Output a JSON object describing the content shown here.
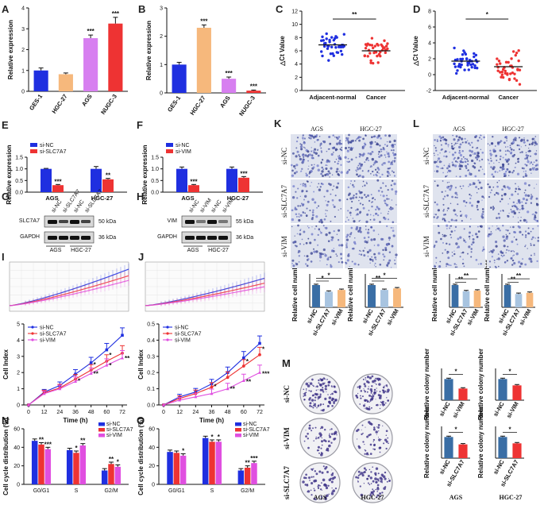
{
  "panels": {
    "A": {
      "label": "A"
    },
    "B": {
      "label": "B"
    },
    "C": {
      "label": "C"
    },
    "D": {
      "label": "D"
    },
    "E": {
      "label": "E"
    },
    "F": {
      "label": "F"
    },
    "G": {
      "label": "G"
    },
    "H": {
      "label": "H"
    },
    "I": {
      "label": "I"
    },
    "J": {
      "label": "J"
    },
    "K": {
      "label": "K"
    },
    "L": {
      "label": "L"
    },
    "M": {
      "label": "M"
    },
    "N": {
      "label": "N"
    },
    "O": {
      "label": "O"
    }
  },
  "colors": {
    "blue": "#1f2fe0",
    "peach": "#f6b87c",
    "lavender": "#d77ff0",
    "red": "#ee3333",
    "steel": "#3a6ea5",
    "pale": "#a8c4e0",
    "magenta": "#e04fe0",
    "navy": "#2a4a80"
  },
  "chart_data": [
    {
      "id": "A",
      "type": "bar",
      "ylabel": "Relative expression",
      "categories": [
        "GES-1",
        "HGC-27",
        "AGS",
        "NUGC-3"
      ],
      "values": [
        1.0,
        0.82,
        2.55,
        3.25
      ],
      "errors": [
        0.12,
        0.06,
        0.15,
        0.3
      ],
      "ylim": [
        0,
        4
      ],
      "yticks": [
        "0",
        "1",
        "2",
        "3",
        "4"
      ],
      "sig": [
        "",
        "",
        "***",
        "***"
      ]
    },
    {
      "id": "B",
      "type": "bar",
      "ylabel": "Relative expression",
      "categories": [
        "GES-1",
        "HGC-27",
        "AGS",
        "NUGC-3"
      ],
      "values": [
        1.0,
        2.3,
        0.5,
        0.08
      ],
      "errors": [
        0.08,
        0.1,
        0.06,
        0.02
      ],
      "ylim": [
        0,
        3
      ],
      "yticks": [
        "0",
        "1",
        "2",
        "3"
      ],
      "sig": [
        "",
        "***",
        "***",
        "***"
      ]
    },
    {
      "id": "C",
      "type": "scatter",
      "ylabel": "△Ct Value",
      "categories": [
        "Adjacent-normal",
        "Cancer"
      ],
      "ylim": [
        0,
        12
      ],
      "yticks": [
        "0",
        "2",
        "4",
        "6",
        "8",
        "10",
        "12"
      ],
      "means": [
        6.9,
        6.0
      ],
      "sig": "**"
    },
    {
      "id": "D",
      "type": "scatter",
      "ylabel": "△Ct Value",
      "categories": [
        "Adjacent-normal",
        "Cancer"
      ],
      "ylim": [
        -2,
        8
      ],
      "yticks": [
        "-2",
        "0",
        "2",
        "4",
        "6",
        "8"
      ],
      "means": [
        1.7,
        1.0
      ],
      "sig": "*"
    },
    {
      "id": "E",
      "type": "bar",
      "ylabel": "Relative expression",
      "legend": [
        "si-NC",
        "si-SLC7A7"
      ],
      "categories": [
        "AGS",
        "HGC-27"
      ],
      "series": [
        {
          "name": "si-NC",
          "values": [
            1.0,
            1.0
          ],
          "errors": [
            0.02,
            0.1
          ]
        },
        {
          "name": "si-SLC7A7",
          "values": [
            0.3,
            0.55
          ],
          "errors": [
            0.03,
            0.04
          ]
        }
      ],
      "ylim": [
        0,
        1.5
      ],
      "yticks": [
        "0.0",
        "0.5",
        "1.0",
        "1.5"
      ],
      "sig": [
        "***",
        "**"
      ]
    },
    {
      "id": "F",
      "type": "bar",
      "ylabel": "Relative expression",
      "legend": [
        "si-NC",
        "si-VIM"
      ],
      "categories": [
        "AGS",
        "HGC-27"
      ],
      "series": [
        {
          "name": "si-NC",
          "values": [
            1.0,
            1.0
          ],
          "errors": [
            0.08,
            0.08
          ]
        },
        {
          "name": "si-VIM",
          "values": [
            0.3,
            0.62
          ],
          "errors": [
            0.03,
            0.05
          ]
        }
      ],
      "ylim": [
        0,
        1.5
      ],
      "yticks": [
        "0.0",
        "0.5",
        "1.0",
        "1.5"
      ],
      "sig": [
        "***",
        "***"
      ]
    },
    {
      "id": "I",
      "type": "line",
      "ylabel": "Cell Index",
      "xlabel": "Time (h)",
      "x": [
        0,
        12,
        24,
        36,
        48,
        60,
        72
      ],
      "series": [
        {
          "name": "si-NC",
          "values": [
            0,
            0.8,
            1.2,
            1.9,
            2.6,
            3.4,
            4.3
          ]
        },
        {
          "name": "si-SLC7A7",
          "values": [
            0,
            0.75,
            1.05,
            1.6,
            2.15,
            2.7,
            3.2
          ]
        },
        {
          "name": "si-VIM",
          "values": [
            0,
            0.7,
            1.0,
            1.45,
            1.95,
            2.45,
            2.9
          ]
        }
      ],
      "ylim": [
        0,
        5
      ],
      "yticks": [
        "0",
        "1",
        "2",
        "3",
        "4",
        "5"
      ]
    },
    {
      "id": "J",
      "type": "line",
      "ylabel": "Cell Index",
      "xlabel": "Time (h)",
      "x": [
        0,
        12,
        24,
        36,
        48,
        60,
        72
      ],
      "series": [
        {
          "name": "si-NC",
          "values": [
            0,
            0.05,
            0.08,
            0.13,
            0.2,
            0.29,
            0.38
          ]
        },
        {
          "name": "si-SLC7A7",
          "values": [
            0,
            0.04,
            0.07,
            0.11,
            0.17,
            0.24,
            0.31
          ]
        },
        {
          "name": "si-VIM",
          "values": [
            0,
            0.03,
            0.05,
            0.07,
            0.1,
            0.15,
            0.2
          ]
        }
      ],
      "ylim": [
        0,
        0.5
      ],
      "yticks": [
        "0.0",
        "0.1",
        "0.2",
        "0.3",
        "0.4",
        "0.5"
      ]
    },
    {
      "id": "N",
      "type": "bar",
      "ylabel": "Cell cycle distribution (%)",
      "categories": [
        "G0/G1",
        "S",
        "G2/M"
      ],
      "legend": [
        "si-NC",
        "si-SLC7A7",
        "si-VIM"
      ],
      "series": [
        {
          "name": "si-NC",
          "values": [
            47,
            37,
            15
          ]
        },
        {
          "name": "si-SLC7A7",
          "values": [
            43,
            34,
            22
          ]
        },
        {
          "name": "si-VIM",
          "values": [
            38,
            42,
            19
          ]
        }
      ],
      "ylim": [
        0,
        60
      ],
      "yticks": [
        "0",
        "20",
        "40",
        "60"
      ]
    },
    {
      "id": "O",
      "type": "bar",
      "ylabel": "Cell cycle distribution (%)",
      "categories": [
        "G0/G1",
        "S",
        "G2/M"
      ],
      "legend": [
        "si-NC",
        "si-SLC7A7",
        "si-VIM"
      ],
      "series": [
        {
          "name": "si-NC",
          "values": [
            35,
            50,
            15
          ]
        },
        {
          "name": "si-SLC7A7",
          "values": [
            34,
            46,
            18
          ]
        },
        {
          "name": "si-VIM",
          "values": [
            31,
            46,
            23
          ]
        }
      ],
      "ylim": [
        0,
        60
      ],
      "yticks": [
        "0",
        "20",
        "40",
        "60"
      ]
    },
    {
      "id": "K_AGS",
      "type": "bar",
      "ylabel": "Relative cell number",
      "categories": [
        "si-NC",
        "si-SLC7A7",
        "si-VIM"
      ],
      "values": [
        1.0,
        0.7,
        0.78
      ],
      "ylim": [
        0,
        1.5
      ]
    },
    {
      "id": "K_HGC",
      "type": "bar",
      "ylabel": "Relative cell number",
      "categories": [
        "si-NC",
        "si-SLC7A7",
        "si-VIM"
      ],
      "values": [
        1.0,
        0.78,
        0.85
      ],
      "ylim": [
        0,
        1.5
      ]
    },
    {
      "id": "L_AGS",
      "type": "bar",
      "ylabel": "Relative cell number",
      "categories": [
        "si-NC",
        "si-SLC7A7",
        "si-VIM"
      ],
      "values": [
        1.0,
        0.72,
        0.75
      ],
      "ylim": [
        0,
        1.5
      ]
    },
    {
      "id": "L_HGC",
      "type": "bar",
      "ylabel": "Relative cell number",
      "categories": [
        "si-NC",
        "si-SLC7A7",
        "si-VIM"
      ],
      "values": [
        1.0,
        0.6,
        0.65
      ],
      "ylim": [
        0,
        1.5
      ]
    },
    {
      "id": "M_AGS_VIM",
      "type": "bar",
      "ylabel": "Relative colony number",
      "categories": [
        "si-NC",
        "si-VIM"
      ],
      "values": [
        1.0,
        0.55
      ],
      "ylim": [
        0,
        1.5
      ]
    },
    {
      "id": "M_HGC_VIM",
      "type": "bar",
      "ylabel": "Relative colony number",
      "categories": [
        "si-NC",
        "si-VIM"
      ],
      "values": [
        1.0,
        0.7
      ],
      "ylim": [
        0,
        1.5
      ]
    },
    {
      "id": "M_AGS_SLC",
      "type": "bar",
      "ylabel": "Relative colony number",
      "categories": [
        "si-NC",
        "si-SLC7A7"
      ],
      "values": [
        1.0,
        0.65
      ],
      "ylim": [
        0,
        1.5
      ]
    },
    {
      "id": "M_HGC_SLC",
      "type": "bar",
      "ylabel": "Relative colony number",
      "categories": [
        "si-NC",
        "si-SLC7A7"
      ],
      "values": [
        1.0,
        0.7
      ],
      "ylim": [
        0,
        1.5
      ]
    }
  ],
  "western": {
    "G": {
      "lanes": [
        "si-NC",
        "si-SLC7A7",
        "si-NC",
        "si-SLC7A7"
      ],
      "rows": [
        "SLC7A7",
        "GAPDH"
      ],
      "kda": [
        "50 kDa",
        "36 kDa"
      ],
      "cells": [
        "AGS",
        "HGC-27"
      ]
    },
    "H": {
      "lanes": [
        "si-NC",
        "si-VIM",
        "si-NC",
        "si-VIM"
      ],
      "rows": [
        "VIM",
        "GAPDH"
      ],
      "kda": [
        "55 kDa",
        "36 kDa"
      ],
      "cells": [
        "AGS",
        "HGC-27"
      ]
    }
  },
  "micro": {
    "cols": [
      "AGS",
      "HGC-27"
    ],
    "rows": [
      "si-NC",
      "si-SLC7A7",
      "si-VIM"
    ]
  },
  "colony": {
    "rows": [
      "si-NC",
      "si-VIM",
      "si-SLC7A7"
    ],
    "cols": [
      "AGS",
      "HGC-27"
    ],
    "bottom": [
      "AGS",
      "HGC-27"
    ]
  },
  "common": {
    "time_label": "Time (h)",
    "x_ticks": [
      "0",
      "12",
      "24",
      "36",
      "48",
      "60",
      "72"
    ],
    "legend_I": [
      "si-NC",
      "si-SLC7A7",
      "si-VIM"
    ],
    "legend_J": [
      "si-NC",
      "si-SLC7A7",
      "si-VIM"
    ]
  },
  "sig_marks": {
    "one": "*",
    "two": "**",
    "three": "***"
  }
}
